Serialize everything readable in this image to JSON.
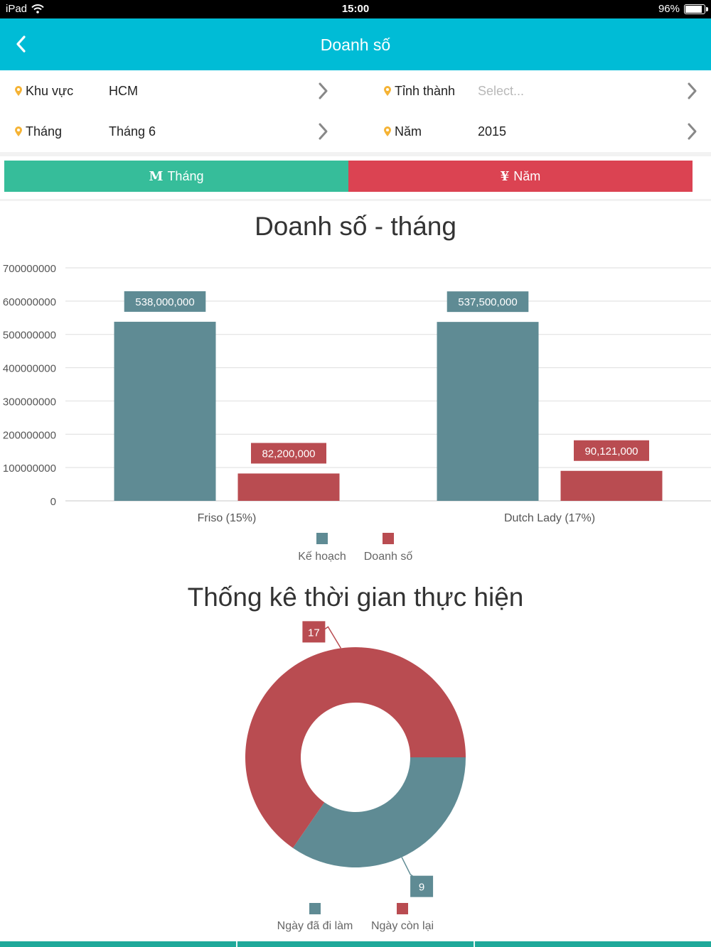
{
  "status_bar": {
    "device": "iPad",
    "time": "15:00",
    "battery": "96%",
    "battery_level": 0.96
  },
  "nav": {
    "title": "Doanh số"
  },
  "filters": {
    "region": {
      "label": "Khu vực",
      "value": "HCM"
    },
    "province": {
      "label": "Tỉnh thành",
      "placeholder": "Select..."
    },
    "month": {
      "label": "Tháng",
      "value": "Tháng 6"
    },
    "year": {
      "label": "Năm",
      "value": "2015"
    }
  },
  "tabs": [
    {
      "icon": "M",
      "label": "Tháng"
    },
    {
      "icon": "¥",
      "label": "Năm"
    }
  ],
  "colors": {
    "header": "#00bcd6",
    "tab_month": "#36bd9a",
    "tab_year": "#db4352",
    "series_plan": "#5f8b94",
    "series_sales": "#b94c51"
  },
  "chart_data": [
    {
      "type": "bar",
      "title": "Doanh số - tháng",
      "categories": [
        "Friso (15%)",
        "Dutch Lady (17%)"
      ],
      "series": [
        {
          "name": "Kế hoạch",
          "values": [
            538000000,
            537500000
          ],
          "labels": [
            "538,000,000",
            "537,500,000"
          ]
        },
        {
          "name": "Doanh số",
          "values": [
            82200000,
            90121000
          ],
          "labels": [
            "82,200,000",
            "90,121,000"
          ]
        }
      ],
      "ylim": [
        0,
        700000000
      ],
      "yticks": [
        "0",
        "100000000",
        "200000000",
        "300000000",
        "400000000",
        "500000000",
        "600000000",
        "700000000"
      ],
      "grid": true,
      "legend": "bottom"
    },
    {
      "type": "pie",
      "title": "Thống kê thời gian thực hiện",
      "slices": [
        {
          "name": "Ngày đã đi làm",
          "value": 9,
          "label": "9"
        },
        {
          "name": "Ngày còn lại",
          "value": 17,
          "label": "17"
        }
      ],
      "legend": "bottom"
    }
  ]
}
